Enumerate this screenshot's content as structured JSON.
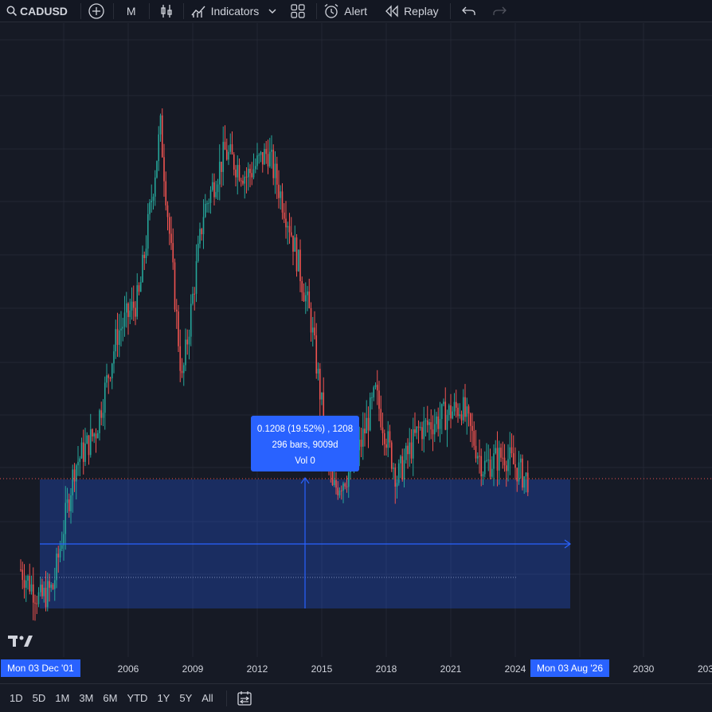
{
  "toolbar": {
    "symbol": "CADUSD",
    "interval": "M",
    "indicators_label": "Indicators",
    "alert_label": "Alert",
    "replay_label": "Replay"
  },
  "time_axis": {
    "ticks": [
      "2006",
      "2009",
      "2012",
      "2015",
      "2018",
      "2021",
      "2024",
      "2030",
      "203"
    ],
    "start_label": "Mon 03 Dec '01",
    "end_label": "Mon 03 Aug '26"
  },
  "measure": {
    "line1": "0.1208 (19.52%) , 1208",
    "line2": "296 bars, 9009d",
    "line3": "Vol 0"
  },
  "bottom_bar": {
    "ranges": [
      "1D",
      "5D",
      "1M",
      "3M",
      "6M",
      "YTD",
      "1Y",
      "5Y",
      "All"
    ]
  },
  "colors": {
    "background": "#161a25",
    "up": "#26a69a",
    "down": "#ef5350",
    "accent": "#2962ff"
  },
  "chart_data": {
    "type": "candlestick",
    "x": [
      "2002",
      "2003",
      "2004",
      "2005",
      "2006",
      "2007",
      "2008",
      "2009",
      "2010",
      "2011",
      "2012",
      "2013",
      "2014",
      "2015",
      "2016",
      "2017",
      "2018",
      "2019",
      "2020",
      "2021",
      "2022",
      "2023",
      "2024"
    ],
    "close": [
      0.64,
      0.74,
      0.77,
      0.85,
      0.88,
      1.02,
      0.81,
      0.95,
      1.0,
      0.98,
      1.0,
      0.94,
      0.86,
      0.72,
      0.74,
      0.8,
      0.73,
      0.77,
      0.78,
      0.79,
      0.74,
      0.75,
      0.73
    ],
    "last_price": 0.73
  }
}
